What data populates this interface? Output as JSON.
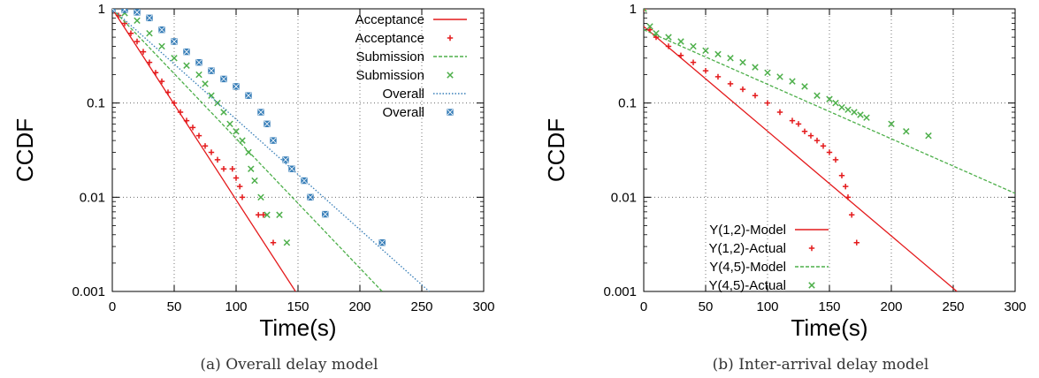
{
  "chart_data": [
    {
      "type": "line",
      "caption": "(a) Overall delay model",
      "xlabel": "Time(s)",
      "ylabel": "CCDF",
      "xlim": [
        0,
        300
      ],
      "ylim": [
        0.001,
        1
      ],
      "yscale": "log",
      "grid": true,
      "legend_position": "top-right",
      "x_ticks": [
        "0",
        "50",
        "100",
        "150",
        "200",
        "250",
        "300"
      ],
      "y_ticks": [
        "0.001",
        "0.01",
        "0.1",
        "1"
      ],
      "series": [
        {
          "name": "Acceptance",
          "kind": "line",
          "style": "solid",
          "color": "#e41a1c",
          "x": [
            0,
            148
          ],
          "y": [
            1,
            0.001
          ]
        },
        {
          "name": "Acceptance",
          "kind": "points",
          "marker": "plus",
          "color": "#e41a1c",
          "x": [
            0,
            5,
            10,
            15,
            20,
            25,
            30,
            35,
            40,
            45,
            50,
            55,
            60,
            65,
            70,
            75,
            80,
            85,
            90,
            97,
            100,
            103,
            105,
            118,
            122,
            130
          ],
          "y": [
            1,
            0.85,
            0.7,
            0.55,
            0.45,
            0.35,
            0.27,
            0.21,
            0.17,
            0.13,
            0.1,
            0.08,
            0.065,
            0.055,
            0.045,
            0.035,
            0.03,
            0.025,
            0.02,
            0.02,
            0.016,
            0.013,
            0.01,
            0.0065,
            0.0065,
            0.0033
          ]
        },
        {
          "name": "Submission",
          "kind": "line",
          "style": "dashed",
          "color": "#4daf4a",
          "x": [
            0,
            218
          ],
          "y": [
            1,
            0.001
          ]
        },
        {
          "name": "Submission",
          "kind": "points",
          "marker": "x",
          "color": "#4daf4a",
          "x": [
            0,
            10,
            20,
            30,
            40,
            50,
            60,
            70,
            75,
            80,
            85,
            90,
            95,
            100,
            105,
            110,
            112,
            115,
            120,
            125,
            135,
            141
          ],
          "y": [
            1,
            0.9,
            0.75,
            0.55,
            0.4,
            0.3,
            0.25,
            0.2,
            0.16,
            0.12,
            0.1,
            0.08,
            0.06,
            0.05,
            0.04,
            0.03,
            0.02,
            0.015,
            0.01,
            0.0065,
            0.0065,
            0.0033
          ]
        },
        {
          "name": "Overall",
          "kind": "line",
          "style": "dotted",
          "color": "#377eb8",
          "x": [
            0,
            256
          ],
          "y": [
            1,
            0.001
          ]
        },
        {
          "name": "Overall",
          "kind": "points",
          "marker": "square-x",
          "color": "#377eb8",
          "x": [
            0,
            10,
            20,
            30,
            40,
            50,
            60,
            70,
            80,
            90,
            100,
            110,
            120,
            125,
            130,
            140,
            145,
            155,
            160,
            172,
            218
          ],
          "y": [
            1,
            0.98,
            0.92,
            0.8,
            0.6,
            0.45,
            0.35,
            0.27,
            0.22,
            0.18,
            0.15,
            0.12,
            0.08,
            0.06,
            0.04,
            0.025,
            0.02,
            0.015,
            0.01,
            0.0066,
            0.0033
          ]
        }
      ]
    },
    {
      "type": "line",
      "caption": "(b) Inter-arrival delay model",
      "xlabel": "Time(s)",
      "ylabel": "CCDF",
      "xlim": [
        0,
        300
      ],
      "ylim": [
        0.001,
        1
      ],
      "yscale": "log",
      "grid": true,
      "legend_position": "bottom-left",
      "x_ticks": [
        "0",
        "50",
        "100",
        "150",
        "200",
        "250",
        "300"
      ],
      "y_ticks": [
        "0.001",
        "0.01",
        "0.1",
        "1"
      ],
      "series": [
        {
          "name": "Y(1,2)-Model",
          "kind": "line",
          "style": "solid",
          "color": "#e41a1c",
          "x": [
            0,
            253
          ],
          "y": [
            0.65,
            0.001
          ]
        },
        {
          "name": "Y(1,2)-Actual",
          "kind": "points",
          "marker": "plus",
          "color": "#e41a1c",
          "x": [
            0,
            5,
            10,
            20,
            30,
            40,
            50,
            60,
            70,
            80,
            90,
            100,
            110,
            120,
            125,
            130,
            135,
            140,
            145,
            150,
            155,
            160,
            163,
            165,
            168,
            172
          ],
          "y": [
            1,
            0.6,
            0.5,
            0.4,
            0.32,
            0.27,
            0.22,
            0.19,
            0.16,
            0.14,
            0.12,
            0.1,
            0.08,
            0.065,
            0.06,
            0.05,
            0.045,
            0.04,
            0.035,
            0.03,
            0.025,
            0.017,
            0.013,
            0.01,
            0.0065,
            0.0033
          ]
        },
        {
          "name": "Y(4,5)-Model",
          "kind": "line",
          "style": "dashed",
          "color": "#4daf4a",
          "x": [
            0,
            300
          ],
          "y": [
            0.6,
            0.011
          ]
        },
        {
          "name": "Y(4,5)-Actual",
          "kind": "points",
          "marker": "x",
          "color": "#4daf4a",
          "x": [
            0,
            5,
            10,
            20,
            30,
            40,
            50,
            60,
            70,
            80,
            90,
            100,
            110,
            120,
            130,
            140,
            150,
            155,
            160,
            165,
            170,
            175,
            180,
            200,
            212,
            230
          ],
          "y": [
            1,
            0.65,
            0.55,
            0.5,
            0.45,
            0.4,
            0.36,
            0.33,
            0.3,
            0.27,
            0.24,
            0.21,
            0.19,
            0.17,
            0.15,
            0.12,
            0.11,
            0.1,
            0.09,
            0.085,
            0.08,
            0.075,
            0.07,
            0.06,
            0.05,
            0.045
          ]
        }
      ]
    }
  ]
}
